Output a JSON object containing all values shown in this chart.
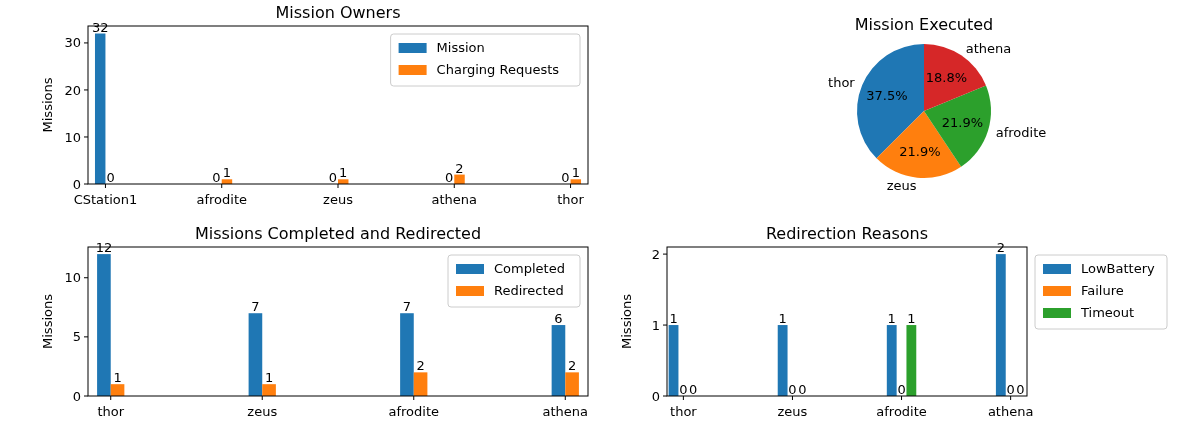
{
  "chart_data": [
    {
      "type": "bar",
      "title": "Mission Owners",
      "ylabel": "Missions",
      "categories": [
        "CStation1",
        "afrodite",
        "zeus",
        "athena",
        "thor"
      ],
      "series": [
        {
          "name": "Mission",
          "color": "#1f77b4",
          "values": [
            32,
            0,
            0,
            0,
            0
          ]
        },
        {
          "name": "Charging Requests",
          "color": "#ff7f0e",
          "values": [
            0,
            1,
            1,
            2,
            1
          ]
        }
      ],
      "ylim": [
        0,
        33.6
      ],
      "yticks": [
        0,
        10,
        20,
        30
      ],
      "legend": "top right",
      "data_labels": true
    },
    {
      "type": "pie",
      "title": "Mission Executed",
      "categories": [
        "thor",
        "zeus",
        "afrodite",
        "athena"
      ],
      "values": [
        37.5,
        21.9,
        21.9,
        18.8
      ],
      "colors": [
        "#1f77b4",
        "#ff7f0e",
        "#2ca02c",
        "#d62728"
      ],
      "value_labels": [
        "37.5%",
        "21.9%",
        "21.9%",
        "18.8%"
      ]
    },
    {
      "type": "bar",
      "title": "Missions Completed and Redirected",
      "ylabel": "Missions",
      "categories": [
        "thor",
        "zeus",
        "afrodite",
        "athena"
      ],
      "series": [
        {
          "name": "Completed",
          "color": "#1f77b4",
          "values": [
            12,
            7,
            7,
            6
          ]
        },
        {
          "name": "Redirected",
          "color": "#ff7f0e",
          "values": [
            1,
            1,
            2,
            2
          ]
        }
      ],
      "ylim": [
        0,
        12.6
      ],
      "yticks": [
        0,
        5,
        10
      ],
      "legend": "top right",
      "data_labels": true
    },
    {
      "type": "bar",
      "title": "Redirection Reasons",
      "ylabel": "Missions",
      "categories": [
        "thor",
        "zeus",
        "afrodite",
        "athena"
      ],
      "series": [
        {
          "name": "LowBattery",
          "color": "#1f77b4",
          "values": [
            1,
            1,
            1,
            2
          ]
        },
        {
          "name": "Failure",
          "color": "#ff7f0e",
          "values": [
            0,
            0,
            0,
            0
          ]
        },
        {
          "name": "Timeout",
          "color": "#2ca02c",
          "values": [
            0,
            0,
            1,
            0
          ]
        }
      ],
      "ylim": [
        0,
        2.1
      ],
      "yticks": [
        0,
        1,
        2
      ],
      "legend": "right",
      "data_labels": true
    }
  ]
}
